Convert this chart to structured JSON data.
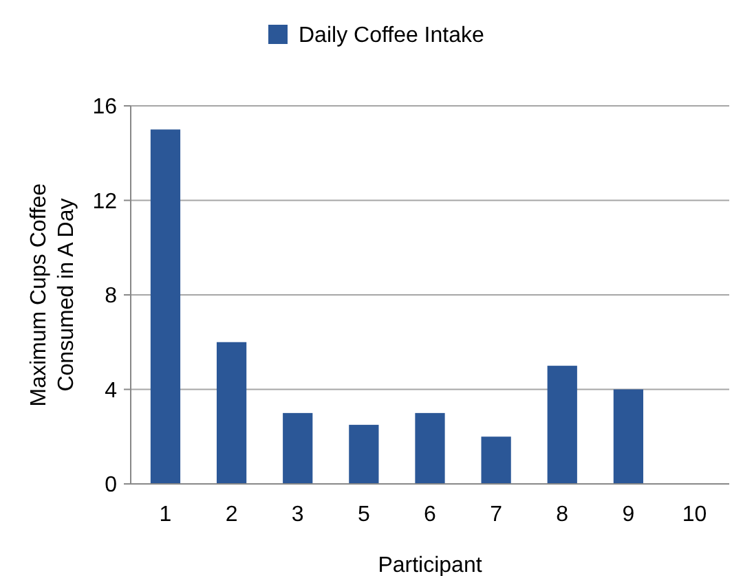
{
  "chart_data": {
    "type": "bar",
    "xlabel": "Participant",
    "ylabel": "Maximum Cups Coffee\nConsumed in A Day",
    "categories": [
      "1",
      "2",
      "3",
      "5",
      "6",
      "7",
      "8",
      "9",
      "10"
    ],
    "series": [
      {
        "name": "Daily Coffee Intake",
        "color": "#2b5797",
        "values": [
          15,
          6,
          3,
          2.5,
          3,
          2,
          5,
          4,
          0
        ]
      }
    ],
    "ylim": [
      0,
      16
    ],
    "yticks": [
      0,
      4,
      8,
      12,
      16
    ],
    "grid": "y",
    "legend": "top"
  }
}
